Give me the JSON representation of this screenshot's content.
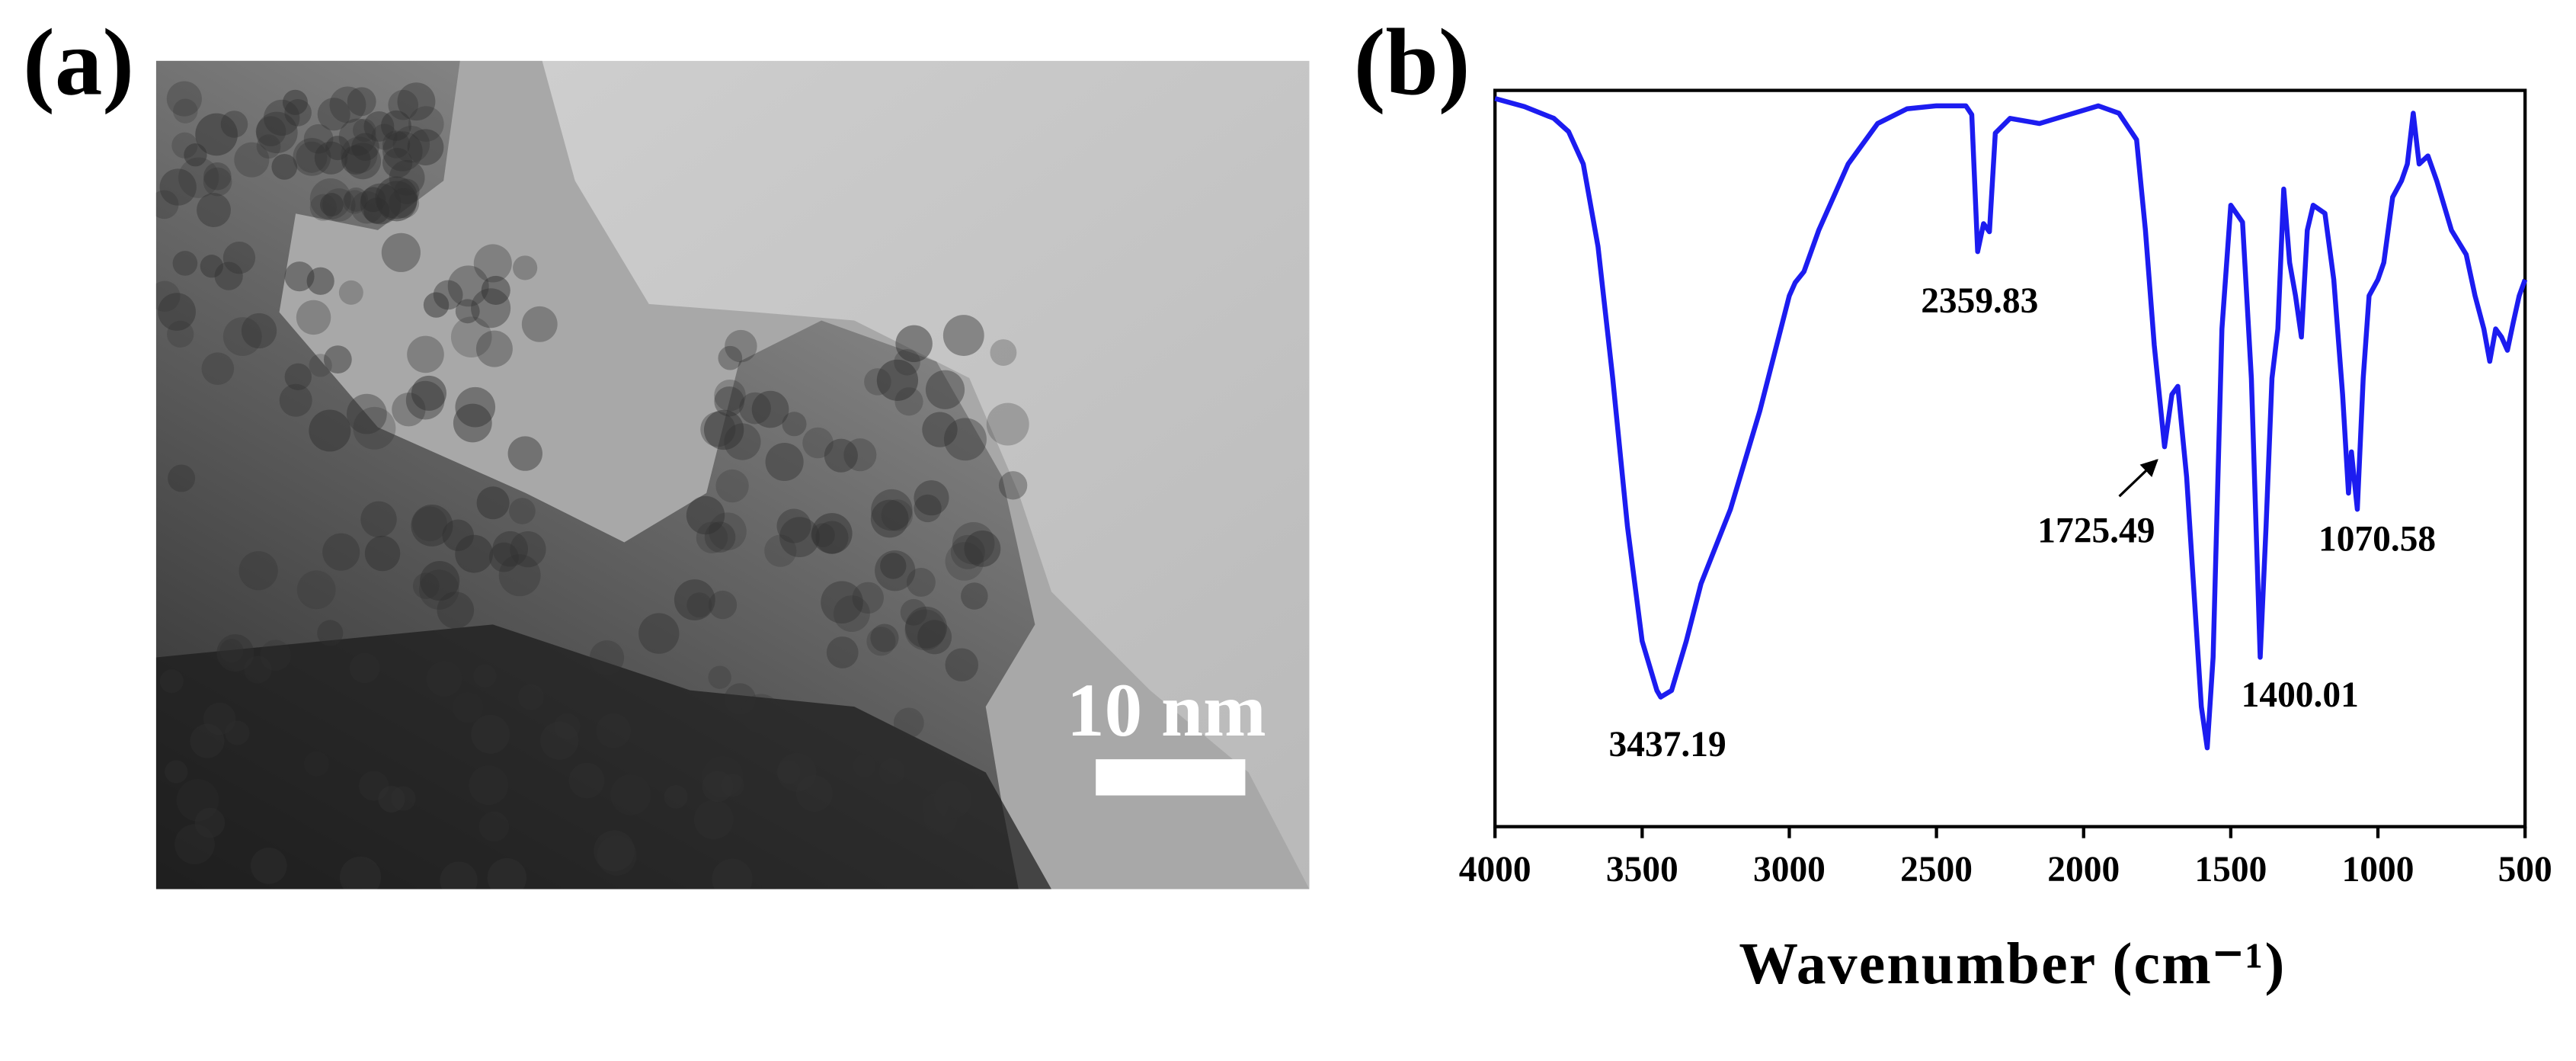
{
  "panel_labels": [
    "(a)",
    "(b)"
  ],
  "scale_bar": "10 nm",
  "chart_data": {
    "type": "line",
    "x_label": "Wavenumber (cm⁻¹)",
    "color": "#1c1cf0",
    "xlim": [
      4000,
      500
    ],
    "xticks": [
      4000,
      3500,
      3000,
      2500,
      2000,
      1500,
      1000,
      500
    ],
    "ylim": [
      0,
      100
    ],
    "annotations": [
      "2359.83",
      "3437.19",
      "1725.49",
      "1400.01",
      "1070.58"
    ],
    "x": [
      4000,
      3900,
      3800,
      3750,
      3700,
      3650,
      3600,
      3550,
      3500,
      3450,
      3437,
      3400,
      3350,
      3300,
      3200,
      3100,
      3000,
      2980,
      2950,
      2900,
      2800,
      2700,
      2600,
      2500,
      2400,
      2380,
      2360,
      2340,
      2320,
      2300,
      2250,
      2150,
      2050,
      1950,
      1880,
      1820,
      1790,
      1760,
      1725,
      1700,
      1680,
      1650,
      1600,
      1580,
      1560,
      1530,
      1500,
      1460,
      1430,
      1400,
      1380,
      1360,
      1340,
      1320,
      1300,
      1280,
      1260,
      1240,
      1220,
      1180,
      1150,
      1120,
      1100,
      1090,
      1070,
      1050,
      1030,
      1000,
      980,
      950,
      920,
      900,
      880,
      860,
      830,
      800,
      750,
      700,
      670,
      640,
      620,
      600,
      580,
      560,
      540,
      520,
      500
    ],
    "values": [
      98.9,
      97.8,
      96.2,
      94.4,
      90.0,
      78.8,
      60.9,
      40.8,
      25.2,
      18.5,
      17.6,
      18.5,
      25.2,
      33.0,
      43.1,
      56.5,
      72.1,
      73.9,
      75.4,
      81.0,
      90.0,
      95.5,
      97.5,
      97.9,
      97.9,
      96.7,
      78.1,
      81.9,
      80.8,
      94.2,
      96.2,
      95.5,
      96.7,
      97.9,
      96.9,
      93.3,
      81.0,
      65.4,
      51.6,
      58.7,
      59.8,
      47.5,
      16.3,
      10.7,
      23.0,
      67.6,
      84.4,
      82.1,
      60.9,
      23.0,
      40.8,
      60.9,
      67.6,
      86.6,
      76.6,
      72.1,
      66.5,
      81.0,
      84.4,
      83.3,
      74.3,
      58.7,
      45.3,
      50.9,
      43.1,
      60.9,
      72.1,
      74.3,
      76.6,
      85.5,
      87.7,
      90.0,
      96.9,
      90.0,
      91.1,
      87.7,
      81.0,
      77.7,
      72.1,
      67.6,
      63.2,
      67.6,
      66.5,
      64.7,
      68.5,
      72.1,
      74.3
    ]
  }
}
